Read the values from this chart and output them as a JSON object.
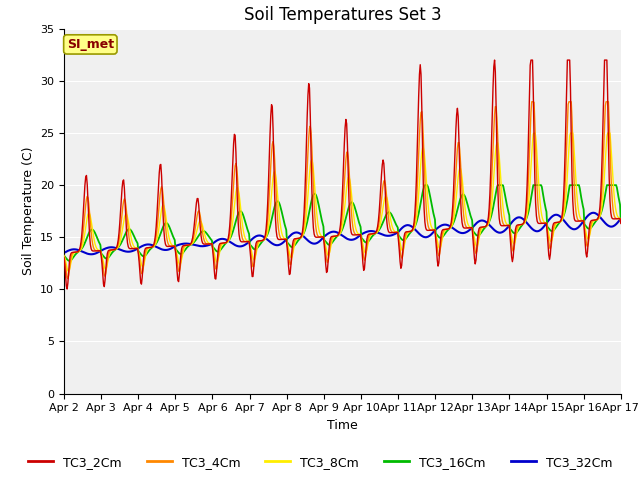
{
  "title": "Soil Temperatures Set 3",
  "xlabel": "Time",
  "ylabel": "Soil Temperature (C)",
  "ylim": [
    0,
    35
  ],
  "colors": {
    "TC3_2Cm": "#cc0000",
    "TC3_4Cm": "#ff8800",
    "TC3_8Cm": "#ffee00",
    "TC3_16Cm": "#00bb00",
    "TC3_32Cm": "#0000cc"
  },
  "x_tick_labels": [
    "Apr 2",
    "Apr 3",
    "Apr 4",
    "Apr 5",
    "Apr 6",
    "Apr 7",
    "Apr 8",
    "Apr 9",
    "Apr 10",
    "Apr 11",
    "Apr 12",
    "Apr 13",
    "Apr 14",
    "Apr 15",
    "Apr 16",
    "Apr 17"
  ],
  "legend_label": "SI_met",
  "legend_box_color": "#ffff88",
  "legend_box_edge": "#999900",
  "fig_bg": "#ffffff",
  "plot_bg": "#f0f0f0",
  "grid_color": "#e0e0e0",
  "title_fontsize": 12,
  "axis_fontsize": 9,
  "tick_fontsize": 8,
  "legend_fontsize": 9
}
